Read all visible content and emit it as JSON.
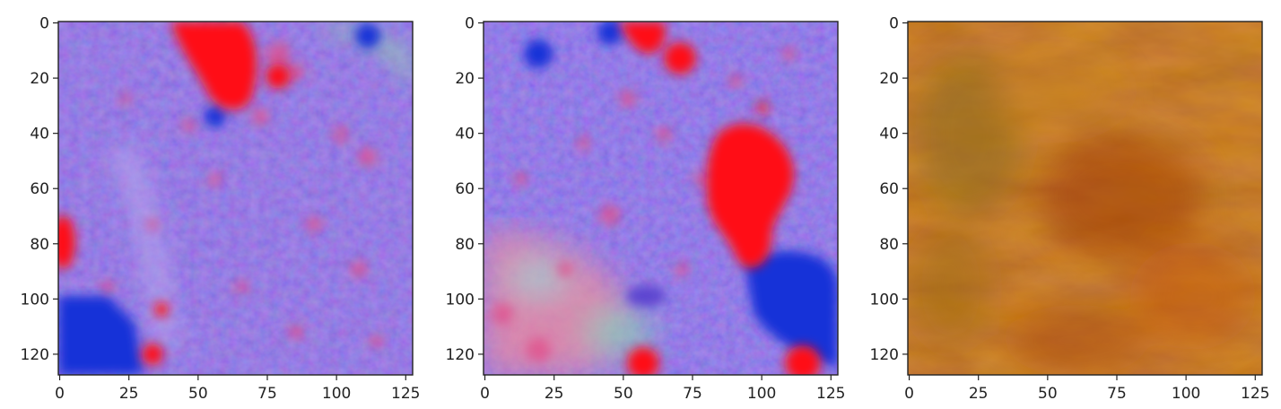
{
  "figure": {
    "panels": [
      {
        "name": "image-1",
        "description_colors": {
          "base": "#6f4fe0",
          "accent": "#ff1a2a",
          "accent2": "#1530d8",
          "accent3": "#7fc8c0"
        },
        "x_ticks": [
          "0",
          "25",
          "50",
          "75",
          "100",
          "125"
        ],
        "y_ticks": [
          "0",
          "20",
          "40",
          "60",
          "80",
          "100",
          "120"
        ]
      },
      {
        "name": "image-2",
        "description_colors": {
          "base": "#6a4fe4",
          "accent": "#ff1a2a",
          "accent2": "#1530d8",
          "accent3": "#ff6f8a"
        },
        "x_ticks": [
          "0",
          "25",
          "50",
          "75",
          "100",
          "125"
        ],
        "y_ticks": [
          "0",
          "20",
          "40",
          "60",
          "80",
          "100",
          "120"
        ]
      },
      {
        "name": "image-3",
        "description_colors": {
          "base": "#b8500f",
          "accent": "#8a3a0a",
          "accent2": "#c98a22",
          "accent3": "#6e6a2a"
        },
        "x_ticks": [
          "0",
          "25",
          "50",
          "75",
          "100",
          "125"
        ],
        "y_ticks": [
          "0",
          "20",
          "40",
          "60",
          "80",
          "100",
          "120"
        ]
      }
    ],
    "axis_range": {
      "x": [
        0,
        128
      ],
      "y": [
        0,
        128
      ]
    }
  }
}
